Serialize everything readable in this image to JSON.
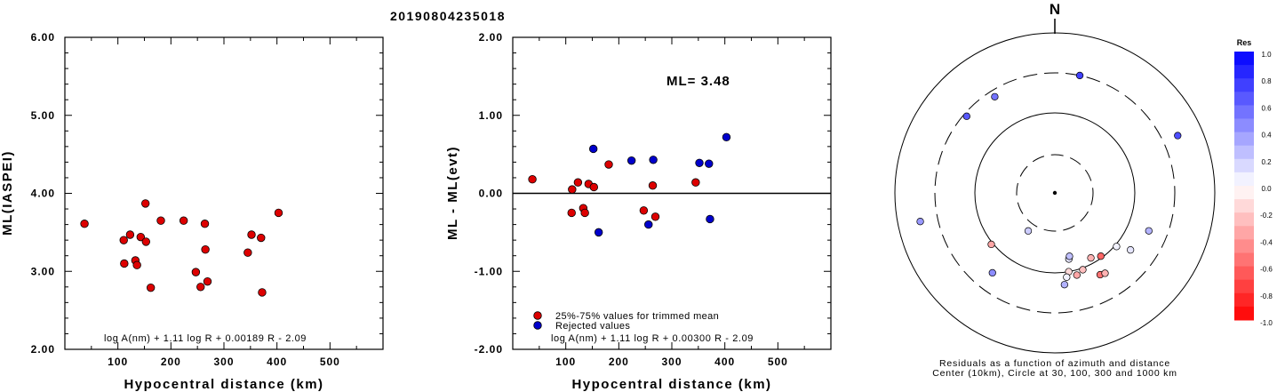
{
  "title": "20190804235018",
  "chart_data": [
    {
      "type": "scatter",
      "id": "magnitude-vs-distance",
      "title": "",
      "xlabel": "Hypocentral distance (km)",
      "ylabel": "ML(IASPEI)",
      "xlim": [
        0,
        600
      ],
      "ylim": [
        2.0,
        6.0
      ],
      "xticks": [
        "100",
        "200",
        "300",
        "400",
        "500"
      ],
      "yticks": [
        "2.00",
        "3.00",
        "4.00",
        "5.00",
        "6.00"
      ],
      "formula": "log A(nm) + 1.11 log R + 0.00189 R - 2.09",
      "series": [
        {
          "color": "#dd0000",
          "x": [
            37,
            111,
            112,
            123,
            133,
            136,
            143,
            152,
            153,
            162,
            181,
            224,
            247,
            256,
            264,
            265,
            269,
            345,
            352,
            370,
            372,
            403
          ],
          "y": [
            3.61,
            3.4,
            3.1,
            3.47,
            3.14,
            3.08,
            3.44,
            3.87,
            3.38,
            2.79,
            3.65,
            3.65,
            2.99,
            2.8,
            3.61,
            3.28,
            2.87,
            3.24,
            3.47,
            3.43,
            2.73,
            3.75
          ]
        }
      ]
    },
    {
      "type": "scatter",
      "id": "residual-vs-distance",
      "title": "",
      "xlabel": "Hypocentral distance (km)",
      "ylabel": "ML - ML(evt)",
      "xlim": [
        0,
        600
      ],
      "ylim": [
        -2.0,
        2.0
      ],
      "xticks": [
        "100",
        "200",
        "300",
        "400",
        "500"
      ],
      "yticks": [
        "-2.00",
        "-1.00",
        "0.00",
        "1.00",
        "2.00"
      ],
      "ml_label": "ML= 3.48",
      "formula": "log A(nm) + 1.11 log R + 0.00300 R - 2.09",
      "zero_line": 0,
      "series": [
        {
          "name": "25%-75% values for trimmed mean",
          "color": "#dd0000",
          "x": [
            37,
            111,
            112,
            123,
            133,
            136,
            143,
            153,
            181,
            247,
            264,
            269,
            345
          ],
          "y": [
            0.18,
            -0.25,
            0.05,
            0.14,
            -0.19,
            -0.25,
            0.12,
            0.08,
            0.37,
            -0.22,
            0.1,
            -0.3,
            0.14
          ]
        },
        {
          "name": "Rejected values",
          "color": "#0000cc",
          "x": [
            152,
            162,
            224,
            256,
            265,
            352,
            370,
            372,
            403
          ],
          "y": [
            0.57,
            -0.5,
            0.42,
            -0.4,
            0.43,
            0.39,
            0.38,
            -0.33,
            0.72
          ]
        }
      ]
    },
    {
      "type": "scatter",
      "id": "azimuth-residual-map",
      "north_label": "N",
      "caption_line1": "Residuals as a function of azimuth and distance",
      "caption_line2": "Center (10km), Circle at 30, 100, 300 and 1000 km",
      "rings_km": [
        10,
        30,
        100,
        300,
        1000
      ],
      "stations": [
        {
          "az": 12,
          "dist_km": 300,
          "res": 0.75
        },
        {
          "az": 328,
          "dist_km": 250,
          "res": 0.55
        },
        {
          "az": 311,
          "dist_km": 275,
          "res": 0.65
        },
        {
          "az": 65,
          "dist_km": 480,
          "res": 0.7
        },
        {
          "az": 258,
          "dist_km": 510,
          "res": 0.4
        },
        {
          "az": 231,
          "dist_km": 105,
          "res": -0.35
        },
        {
          "az": 215,
          "dist_km": 38,
          "res": 0.2
        },
        {
          "az": 112,
          "dist_km": 180,
          "res": 0.3
        },
        {
          "az": 127,
          "dist_km": 150,
          "res": 0.1
        },
        {
          "az": 131,
          "dist_km": 105,
          "res": 0.05
        },
        {
          "az": 218,
          "dist_km": 180,
          "res": 0.45
        },
        {
          "az": 168,
          "dist_km": 70,
          "res": 0.1
        },
        {
          "az": 167,
          "dist_km": 65,
          "res": 0.25
        },
        {
          "az": 151,
          "dist_km": 85,
          "res": -0.3
        },
        {
          "az": 144,
          "dist_km": 95,
          "res": -0.6
        },
        {
          "az": 151,
          "dist_km": 145,
          "res": -0.55
        },
        {
          "az": 148,
          "dist_km": 150,
          "res": -0.3
        },
        {
          "az": 160,
          "dist_km": 105,
          "res": -0.25
        },
        {
          "az": 165,
          "dist_km": 115,
          "res": -0.35
        },
        {
          "az": 170,
          "dist_km": 100,
          "res": -0.15
        },
        {
          "az": 172,
          "dist_km": 115,
          "res": 0.05
        },
        {
          "az": 174,
          "dist_km": 140,
          "res": 0.3
        }
      ]
    }
  ],
  "colorbar": {
    "title": "Res",
    "labels": [
      "1.0",
      "0.8",
      "0.6",
      "0.4",
      "0.2",
      "0.0",
      "-0.2",
      "-0.4",
      "-0.6",
      "-0.8",
      "-1.0"
    ]
  }
}
